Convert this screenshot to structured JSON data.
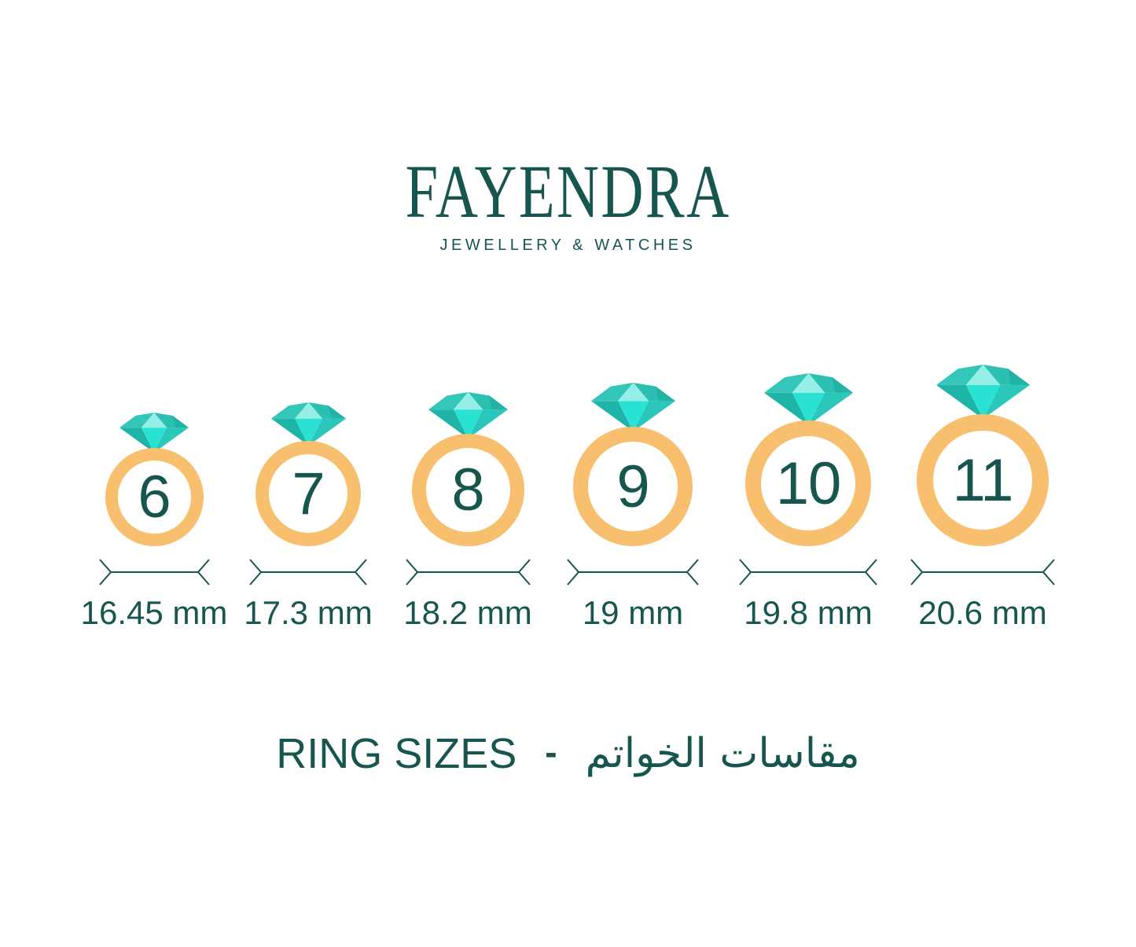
{
  "brand": {
    "name": "FAYENDRA",
    "tagline": "JEWELLERY & WATCHES"
  },
  "rings": [
    {
      "size": "6",
      "diameter_label": "16.45 mm"
    },
    {
      "size": "7",
      "diameter_label": "17.3 mm"
    },
    {
      "size": "8",
      "diameter_label": "18.2 mm"
    },
    {
      "size": "9",
      "diameter_label": "19 mm"
    },
    {
      "size": "10",
      "diameter_label": "19.8 mm"
    },
    {
      "size": "11",
      "diameter_label": "20.6 mm"
    }
  ],
  "footer": {
    "title_en": "RING SIZES",
    "separator": "-",
    "title_ar": "مقاسات الخواتم"
  },
  "colors": {
    "text_teal": "#17554F",
    "band_orange": "#F7BF6E",
    "diamond": {
      "pale": "#96EFE7",
      "mid": "#33C6B9",
      "mid2": "#2CC0B3",
      "dark": "#23B2A6",
      "bright": "#29E2D4",
      "pavilion_left": "#1FB4A8",
      "pavilion_right": "#2BC7BA"
    }
  }
}
